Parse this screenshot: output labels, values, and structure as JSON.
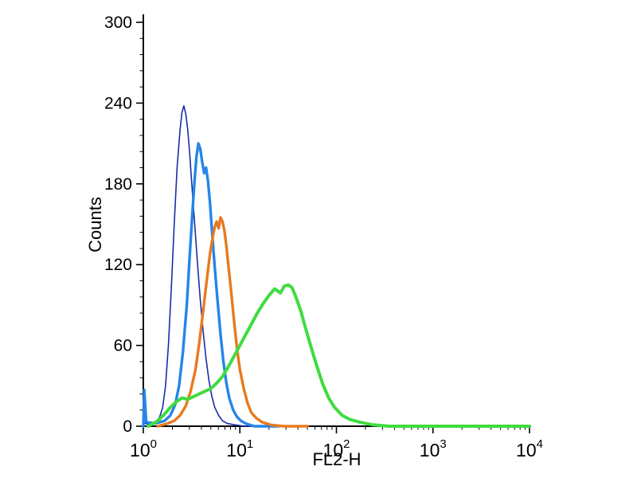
{
  "page": {
    "background_color": "#ffffff"
  },
  "chart_data": {
    "type": "line",
    "chart_kind": "flow-cytometry-histogram",
    "title": "",
    "xlabel": "FL2-H",
    "ylabel": "Counts",
    "x_scale": "log10",
    "x_range_log": [
      0,
      4
    ],
    "x_tick_base": "10",
    "x_tick_exponents": [
      "0",
      "1",
      "2",
      "3",
      "4"
    ],
    "ylim": [
      0,
      300
    ],
    "y_ticks": [
      0,
      60,
      120,
      180,
      240,
      300
    ],
    "axis_color": "#000000",
    "grid": false,
    "legend": "none",
    "series": [
      {
        "name": "navy-curve",
        "color": "#1b2ba8",
        "width": 1.6,
        "points": [
          [
            0.0,
            0
          ],
          [
            0.01,
            20
          ],
          [
            0.02,
            2
          ],
          [
            0.08,
            1
          ],
          [
            0.13,
            3
          ],
          [
            0.17,
            7
          ],
          [
            0.2,
            14
          ],
          [
            0.23,
            30
          ],
          [
            0.26,
            60
          ],
          [
            0.29,
            103
          ],
          [
            0.32,
            150
          ],
          [
            0.35,
            192
          ],
          [
            0.38,
            220
          ],
          [
            0.4,
            233
          ],
          [
            0.42,
            238
          ],
          [
            0.44,
            232
          ],
          [
            0.46,
            220
          ],
          [
            0.48,
            203
          ],
          [
            0.5,
            182
          ],
          [
            0.53,
            152
          ],
          [
            0.56,
            122
          ],
          [
            0.59,
            94
          ],
          [
            0.62,
            70
          ],
          [
            0.65,
            50
          ],
          [
            0.68,
            34
          ],
          [
            0.71,
            22
          ],
          [
            0.74,
            14
          ],
          [
            0.78,
            8
          ],
          [
            0.82,
            4
          ],
          [
            0.87,
            2
          ],
          [
            0.95,
            1
          ],
          [
            1.05,
            0
          ],
          [
            1.3,
            0
          ]
        ]
      },
      {
        "name": "light-blue-curve",
        "color": "#2585e8",
        "width": 3.4,
        "points": [
          [
            0.0,
            0
          ],
          [
            0.01,
            27
          ],
          [
            0.03,
            3
          ],
          [
            0.12,
            2
          ],
          [
            0.22,
            4
          ],
          [
            0.28,
            8
          ],
          [
            0.33,
            16
          ],
          [
            0.37,
            30
          ],
          [
            0.41,
            55
          ],
          [
            0.45,
            90
          ],
          [
            0.48,
            126
          ],
          [
            0.51,
            160
          ],
          [
            0.53,
            182
          ],
          [
            0.55,
            200
          ],
          [
            0.57,
            210
          ],
          [
            0.59,
            206
          ],
          [
            0.61,
            196
          ],
          [
            0.63,
            188
          ],
          [
            0.65,
            192
          ],
          [
            0.67,
            182
          ],
          [
            0.69,
            166
          ],
          [
            0.71,
            146
          ],
          [
            0.74,
            118
          ],
          [
            0.77,
            92
          ],
          [
            0.8,
            68
          ],
          [
            0.83,
            48
          ],
          [
            0.86,
            32
          ],
          [
            0.89,
            21
          ],
          [
            0.93,
            12
          ],
          [
            0.97,
            7
          ],
          [
            1.01,
            4
          ],
          [
            1.06,
            2
          ],
          [
            1.15,
            0
          ],
          [
            1.4,
            0
          ]
        ]
      },
      {
        "name": "orange-curve",
        "color": "#e87a1e",
        "width": 3.4,
        "points": [
          [
            0.15,
            0
          ],
          [
            0.25,
            2
          ],
          [
            0.32,
            4
          ],
          [
            0.38,
            8
          ],
          [
            0.44,
            15
          ],
          [
            0.49,
            26
          ],
          [
            0.54,
            42
          ],
          [
            0.58,
            62
          ],
          [
            0.62,
            86
          ],
          [
            0.66,
            110
          ],
          [
            0.69,
            128
          ],
          [
            0.72,
            141
          ],
          [
            0.74,
            148
          ],
          [
            0.76,
            152
          ],
          [
            0.78,
            147
          ],
          [
            0.8,
            155
          ],
          [
            0.82,
            152
          ],
          [
            0.84,
            145
          ],
          [
            0.86,
            134
          ],
          [
            0.88,
            120
          ],
          [
            0.91,
            100
          ],
          [
            0.94,
            78
          ],
          [
            0.97,
            58
          ],
          [
            1.0,
            42
          ],
          [
            1.04,
            28
          ],
          [
            1.08,
            17
          ],
          [
            1.12,
            10
          ],
          [
            1.17,
            6
          ],
          [
            1.23,
            3
          ],
          [
            1.32,
            1
          ],
          [
            1.45,
            0
          ],
          [
            1.7,
            0
          ]
        ]
      },
      {
        "name": "green-curve",
        "color": "#3fdc3f",
        "width": 4.0,
        "points": [
          [
            0.05,
            0
          ],
          [
            0.15,
            4
          ],
          [
            0.22,
            9
          ],
          [
            0.28,
            14
          ],
          [
            0.34,
            18
          ],
          [
            0.4,
            21
          ],
          [
            0.46,
            20
          ],
          [
            0.52,
            22
          ],
          [
            0.58,
            24
          ],
          [
            0.64,
            26
          ],
          [
            0.7,
            28
          ],
          [
            0.76,
            32
          ],
          [
            0.82,
            37
          ],
          [
            0.88,
            44
          ],
          [
            0.94,
            52
          ],
          [
            1.0,
            60
          ],
          [
            1.06,
            68
          ],
          [
            1.12,
            76
          ],
          [
            1.18,
            84
          ],
          [
            1.24,
            91
          ],
          [
            1.3,
            97
          ],
          [
            1.36,
            102
          ],
          [
            1.42,
            99
          ],
          [
            1.46,
            104
          ],
          [
            1.5,
            105
          ],
          [
            1.54,
            103
          ],
          [
            1.58,
            96
          ],
          [
            1.63,
            86
          ],
          [
            1.68,
            73
          ],
          [
            1.74,
            58
          ],
          [
            1.8,
            44
          ],
          [
            1.86,
            31
          ],
          [
            1.92,
            21
          ],
          [
            1.98,
            14
          ],
          [
            2.06,
            8
          ],
          [
            2.14,
            5
          ],
          [
            2.24,
            3
          ],
          [
            2.38,
            1
          ],
          [
            2.55,
            0
          ],
          [
            3.0,
            0
          ],
          [
            4.0,
            0
          ]
        ]
      }
    ]
  }
}
